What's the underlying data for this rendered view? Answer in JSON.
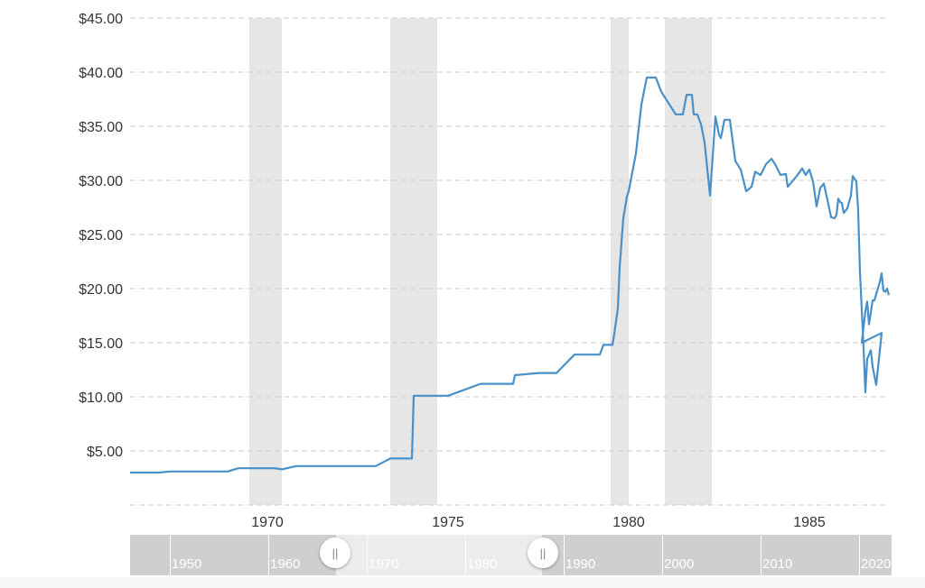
{
  "chart_data": {
    "type": "line",
    "title": "",
    "xlabel": "",
    "ylabel": "",
    "ylim": [
      0,
      45
    ],
    "xlim": [
      1966.2,
      1987.2
    ],
    "y_ticks": [
      "$5.00",
      "$10.00",
      "$15.00",
      "$20.00",
      "$25.00",
      "$30.00",
      "$35.00",
      "$40.00",
      "$45.00"
    ],
    "y_tick_values": [
      5,
      10,
      15,
      20,
      25,
      30,
      35,
      40,
      45
    ],
    "x_ticks": [
      "1970",
      "1975",
      "1980",
      "1985"
    ],
    "x_tick_values": [
      1970,
      1975,
      1980,
      1985
    ],
    "grid": true,
    "legend": "none",
    "recessions": [
      {
        "start": 1969.5,
        "end": 1970.4
      },
      {
        "start": 1973.4,
        "end": 1974.7
      },
      {
        "start": 1979.5,
        "end": 1980.0
      },
      {
        "start": 1981.0,
        "end": 1982.3
      }
    ],
    "series": [
      {
        "color": "#4a90c8",
        "x": [
          1966.2,
          1966.6,
          1967.0,
          1967.3,
          1967.6,
          1968.0,
          1968.5,
          1968.9,
          1969.2,
          1969.5,
          1969.8,
          1970.2,
          1970.4,
          1970.8,
          1971.3,
          1971.8,
          1972.3,
          1972.8,
          1973.0,
          1973.4,
          1973.55,
          1974.0,
          1974.05,
          1974.5,
          1975.0,
          1975.9,
          1976.1,
          1976.4,
          1976.6,
          1976.8,
          1976.85,
          1977.5,
          1977.7,
          1978.0,
          1978.5,
          1978.9,
          1979.0,
          1979.2,
          1979.3,
          1979.4,
          1979.5,
          1979.55,
          1979.6,
          1979.7,
          1979.75,
          1979.85,
          1979.95,
          1980.0,
          1980.2,
          1980.35,
          1980.5,
          1980.75,
          1980.9,
          1981.3,
          1981.5,
          1981.6,
          1981.75,
          1981.8,
          1981.9,
          1982.0,
          1982.1,
          1982.25,
          1982.4,
          1982.5,
          1982.55,
          1982.65,
          1982.8,
          1982.95,
          1983.1,
          1983.25,
          1983.4,
          1983.5,
          1983.65,
          1983.8,
          1983.95,
          1984.05,
          1984.2,
          1984.35,
          1984.4,
          1984.5,
          1984.65,
          1984.8,
          1984.9,
          1985.0,
          1985.1,
          1985.2,
          1985.3,
          1985.4,
          1985.5,
          1985.6,
          1985.7,
          1985.75,
          1985.8,
          1985.85,
          1985.9,
          1985.95,
          1986.05,
          1986.15,
          1986.2,
          1986.3,
          1986.35,
          1986.4,
          1986.5,
          1986.55,
          1986.6,
          1986.7,
          1986.75,
          1986.85,
          1987.0,
          1987.1,
          1987.2
        ],
        "y": [
          3.0,
          3.0,
          3.0,
          3.1,
          3.1,
          3.1,
          3.1,
          3.1,
          3.4,
          3.4,
          3.4,
          3.4,
          3.3,
          3.6,
          3.6,
          3.6,
          3.6,
          3.6,
          3.6,
          4.3,
          4.3,
          4.3,
          10.1,
          10.1,
          10.1,
          11.2,
          11.2,
          11.2,
          11.2,
          11.2,
          12.0,
          12.2,
          12.2,
          12.2,
          13.9,
          13.9,
          13.9,
          13.9,
          14.8,
          14.8,
          14.8,
          14.8,
          15.8,
          18.2,
          22.0,
          26.5,
          28.5,
          29.0,
          32.5,
          37.0,
          39.5,
          39.5,
          38.2,
          36.1,
          36.1,
          37.9,
          37.9,
          36.1,
          36.1,
          35.2,
          33.5,
          28.6,
          35.9,
          34.2,
          33.9,
          35.6,
          35.6,
          31.8,
          31.0,
          29.0,
          29.4,
          30.8,
          30.5,
          31.5,
          32.0,
          31.5,
          30.5,
          30.6,
          29.4,
          29.8,
          30.4,
          31.1,
          30.5,
          31.0,
          29.9,
          27.6,
          29.3,
          29.7,
          28.2,
          26.6,
          26.5,
          26.8,
          28.3,
          28.0,
          27.9,
          27.0,
          27.4,
          28.6,
          30.4,
          29.9,
          27.2,
          21.5,
          14.5,
          10.4,
          13.5,
          14.3,
          12.8,
          11.1,
          15.9,
          14.8,
          15.3
        ],
        "x_tail": [
          1986.45,
          1986.55,
          1986.6,
          1986.65,
          1986.75,
          1986.8,
          1986.85,
          1986.95,
          1987.0,
          1987.05,
          1987.1,
          1987.15,
          1987.2
        ],
        "y_tail": [
          15.0,
          17.9,
          18.8,
          16.7,
          18.9,
          18.9,
          19.5,
          20.6,
          21.4,
          19.8,
          19.7,
          20.0,
          19.4
        ]
      }
    ]
  },
  "navigator": {
    "labels": [
      "1950",
      "1960",
      "1970",
      "1980",
      "1990",
      "2000",
      "2010",
      "2020"
    ],
    "handle_left_glyph": "||",
    "handle_right_glyph": "||"
  }
}
